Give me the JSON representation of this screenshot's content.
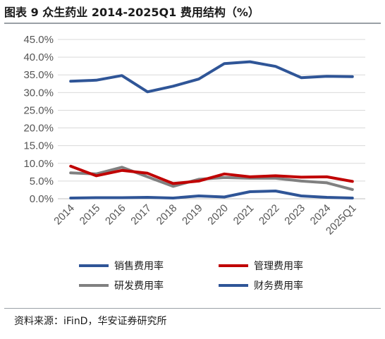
{
  "title": "图表 9 众生药业 2014-2025Q1 费用结构（%）",
  "source": "资料来源：iFinD，华安证券研究所",
  "chart_data": {
    "type": "line",
    "title": "",
    "xlabel": "",
    "ylabel": "",
    "categories": [
      "2014",
      "2015",
      "2016",
      "2017",
      "2018",
      "2019",
      "2020",
      "2021",
      "2022",
      "2023",
      "2024",
      "2025Q1"
    ],
    "yticks": [
      "0.0%",
      "5.0%",
      "10.0%",
      "15.0%",
      "20.0%",
      "25.0%",
      "30.0%",
      "35.0%",
      "40.0%",
      "45.0%"
    ],
    "ylim": [
      0,
      45
    ],
    "grid": true,
    "legend_position": "bottom",
    "series": [
      {
        "name": "销售费用率",
        "color": "#2f5597",
        "values": [
          33.2,
          33.5,
          34.8,
          30.2,
          31.8,
          33.8,
          38.2,
          38.7,
          37.4,
          34.2,
          34.6,
          34.5
        ]
      },
      {
        "name": "管理费用率",
        "color": "#c00000",
        "values": [
          9.2,
          6.5,
          8.0,
          7.2,
          4.3,
          5.0,
          7.0,
          6.2,
          6.5,
          6.1,
          6.2,
          4.9
        ]
      },
      {
        "name": "研发费用率",
        "color": "#808080",
        "values": [
          7.3,
          7.0,
          8.9,
          6.2,
          3.5,
          5.5,
          6.0,
          5.8,
          5.8,
          5.0,
          4.5,
          2.6
        ]
      },
      {
        "name": "财务费用率",
        "color": "#2f5597",
        "values": [
          0.2,
          0.3,
          0.3,
          0.4,
          0.2,
          0.8,
          0.5,
          2.0,
          2.2,
          0.8,
          0.4,
          0.2
        ]
      }
    ]
  }
}
